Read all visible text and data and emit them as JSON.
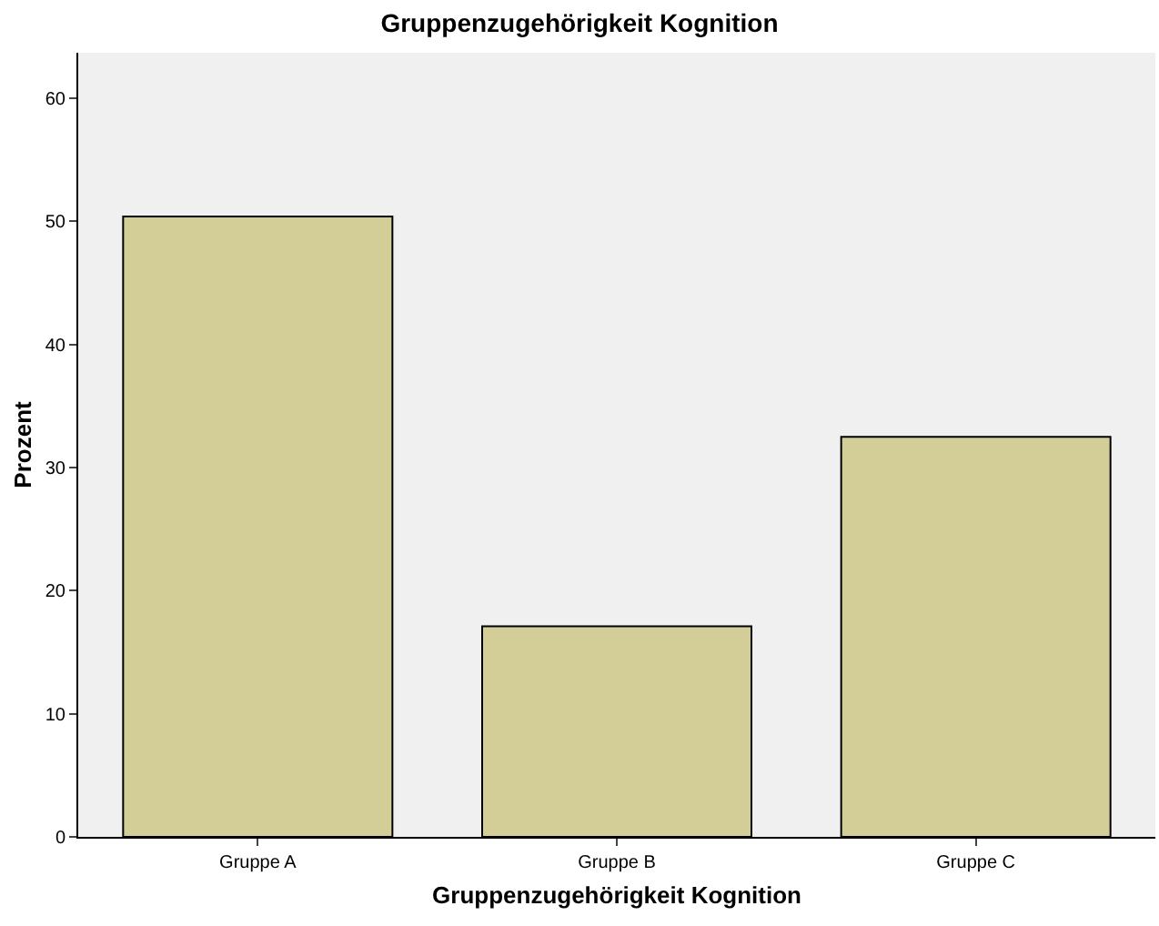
{
  "chart_data": {
    "type": "bar",
    "title": "Gruppenzugehörigkeit Kognition",
    "xlabel": "Gruppenzugehörigkeit Kognition",
    "ylabel": "Prozent",
    "categories": [
      "Gruppe A",
      "Gruppe B",
      "Gruppe C"
    ],
    "values": [
      50.4,
      17.1,
      32.5
    ],
    "color": "#d3ce97",
    "ylim": [
      0,
      63.7
    ],
    "yticks": [
      0,
      10,
      20,
      30,
      40,
      50,
      60
    ],
    "grid": false
  }
}
